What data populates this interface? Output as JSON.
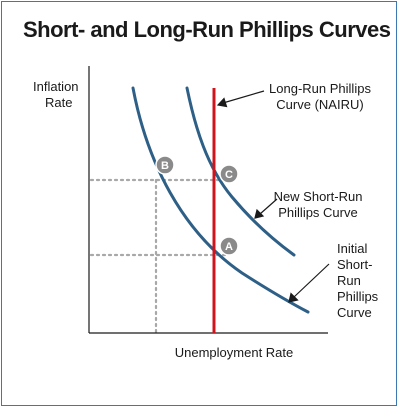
{
  "title": "Short- and Long-Run Phillips Curves",
  "y_axis_label": [
    "Inflation",
    "Rate"
  ],
  "x_axis_label": "Unemployment Rate",
  "labels": {
    "lrpc": [
      "Long-Run Phillips",
      "Curve (NAIRU)"
    ],
    "new_srpc": [
      "New Short-Run",
      "Phillips Curve"
    ],
    "initial_srpc": [
      "Initial",
      "Short-",
      "Run",
      "Phillips",
      "Curve"
    ]
  },
  "points": [
    "A",
    "B",
    "C"
  ],
  "colors": {
    "curve": "#2e5f86",
    "lrpc": "#d0141c",
    "point_fill": "#8a8a8a",
    "dotted": "#a8a8a8",
    "border": "#3c79b4"
  }
}
